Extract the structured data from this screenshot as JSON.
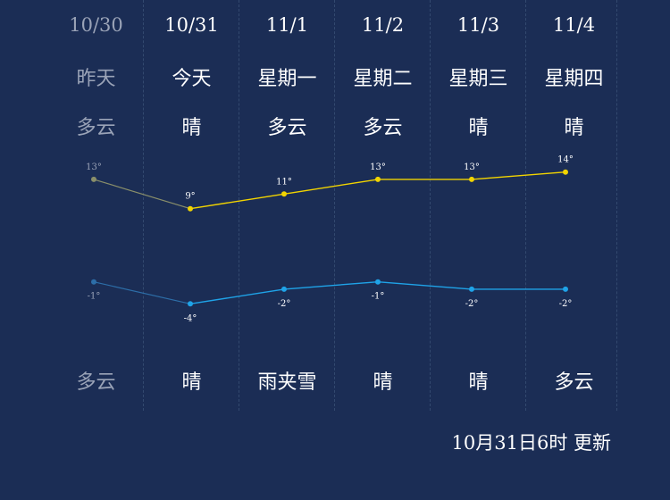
{
  "forecast": [
    {
      "date": "10/30",
      "weekday": "昨天",
      "day_condition": "多云",
      "night_condition": "多云",
      "high": "13°",
      "low": "-1°"
    },
    {
      "date": "10/31",
      "weekday": "今天",
      "day_condition": "晴",
      "night_condition": "晴",
      "high": "9°",
      "low": "-4°"
    },
    {
      "date": "11/1",
      "weekday": "星期一",
      "day_condition": "多云",
      "night_condition": "雨夹雪",
      "high": "11°",
      "low": "-2°"
    },
    {
      "date": "11/2",
      "weekday": "星期二",
      "day_condition": "多云",
      "night_condition": "晴",
      "high": "13°",
      "low": "-1°"
    },
    {
      "date": "11/3",
      "weekday": "星期三",
      "day_condition": "晴",
      "night_condition": "晴",
      "high": "13°",
      "low": "-2°"
    },
    {
      "date": "11/4",
      "weekday": "星期四",
      "day_condition": "晴",
      "night_condition": "多云",
      "high": "14°",
      "low": "-2°"
    }
  ],
  "chart_data": {
    "type": "line",
    "categories": [
      "10/30",
      "10/31",
      "11/1",
      "11/2",
      "11/3",
      "11/4"
    ],
    "series": [
      {
        "values": [
          13,
          9,
          11,
          13,
          13,
          14
        ],
        "color": "#f2d400"
      },
      {
        "values": [
          -1,
          -4,
          -2,
          -1,
          -2,
          -2
        ],
        "color": "#1fa3e8"
      }
    ],
    "past_color": "#8a8f6a",
    "past_low_color": "#2d6ea8"
  },
  "update_text": "10月31日6时 更新"
}
